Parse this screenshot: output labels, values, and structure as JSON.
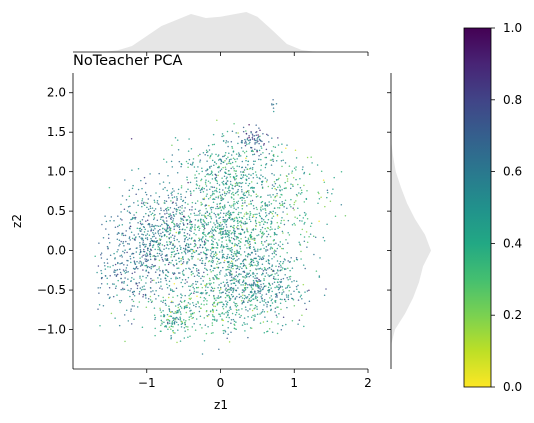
{
  "chart_data": {
    "type": "scatter",
    "title": "NoTeacher PCA",
    "xlabel": "z1",
    "ylabel": "z2",
    "xlim": [
      -2,
      2
    ],
    "ylim": [
      -1.5,
      2.25
    ],
    "x_ticks": [
      -1,
      0,
      1,
      2
    ],
    "x_tick_labels": [
      "−1",
      "0",
      "1",
      "2"
    ],
    "y_ticks": [
      -1.0,
      -0.5,
      0.0,
      0.5,
      1.0,
      1.5,
      2.0
    ],
    "y_tick_labels": [
      "−1.0",
      "−0.5",
      "0.0",
      "0.5",
      "1.0",
      "1.5",
      "2.0"
    ],
    "grid": false,
    "colormap": "viridis_r",
    "colorbar": {
      "range": [
        0.0,
        1.0
      ],
      "ticks": [
        0.0,
        0.2,
        0.4,
        0.6,
        0.8,
        1.0
      ],
      "tick_labels": [
        "0.0",
        "0.2",
        "0.4",
        "0.6",
        "0.8",
        "1.0"
      ]
    },
    "marginal_color": "#e6e6e6",
    "marginal_x_density": {
      "x": [
        -1.6,
        -1.4,
        -1.2,
        -1.0,
        -0.8,
        -0.6,
        -0.4,
        -0.2,
        0.0,
        0.2,
        0.35,
        0.5,
        0.7,
        0.9,
        1.1,
        1.3
      ],
      "density": [
        0.0,
        0.04,
        0.15,
        0.4,
        0.65,
        0.8,
        0.95,
        0.85,
        0.88,
        0.95,
        1.0,
        0.88,
        0.55,
        0.2,
        0.05,
        0.0
      ]
    },
    "marginal_y_density": {
      "y": [
        -1.2,
        -1.0,
        -0.8,
        -0.6,
        -0.4,
        -0.2,
        0.0,
        0.2,
        0.4,
        0.6,
        0.8,
        1.0,
        1.2,
        1.4
      ],
      "density": [
        0.0,
        0.1,
        0.35,
        0.55,
        0.7,
        0.8,
        1.0,
        0.85,
        0.6,
        0.4,
        0.25,
        0.12,
        0.05,
        0.0
      ]
    },
    "clusters": [
      {
        "cx": 0.1,
        "cy": 0.2,
        "sx": 0.45,
        "sy": 0.4,
        "n": 1100,
        "value_mean": 0.45
      },
      {
        "cx": -0.8,
        "cy": 0.15,
        "sx": 0.35,
        "sy": 0.35,
        "n": 650,
        "value_mean": 0.6
      },
      {
        "cx": 0.5,
        "cy": -0.45,
        "sx": 0.35,
        "sy": 0.22,
        "n": 450,
        "value_mean": 0.55
      },
      {
        "cx": 0.2,
        "cy": 1.0,
        "sx": 0.35,
        "sy": 0.25,
        "n": 380,
        "value_mean": 0.45
      },
      {
        "cx": 0.45,
        "cy": 1.4,
        "sx": 0.1,
        "sy": 0.08,
        "n": 70,
        "value_mean": 0.7
      },
      {
        "cx": -1.3,
        "cy": -0.3,
        "sx": 0.25,
        "sy": 0.25,
        "n": 180,
        "value_mean": 0.65
      },
      {
        "cx": -0.65,
        "cy": -0.9,
        "sx": 0.1,
        "sy": 0.07,
        "n": 70,
        "value_mean": 0.45
      },
      {
        "cx": 1.0,
        "cy": 0.7,
        "sx": 0.3,
        "sy": 0.3,
        "n": 140,
        "value_mean": 0.35
      },
      {
        "cx": -0.2,
        "cy": -0.75,
        "sx": 0.45,
        "sy": 0.2,
        "n": 320,
        "value_mean": 0.4
      },
      {
        "cx": 0.7,
        "cy": 1.85,
        "sx": 0.04,
        "sy": 0.04,
        "n": 6,
        "value_mean": 0.7
      }
    ]
  }
}
